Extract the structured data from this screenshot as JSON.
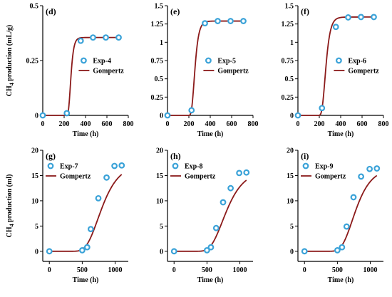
{
  "colors": {
    "marker_edge": "#3aa2d8",
    "curve": "#8b1a1a",
    "marker_fill": "#ffffff"
  },
  "chart_data": [
    {
      "type": "scatter",
      "panel_label": "(d)",
      "ylabel_main": "CH",
      "ylabel_sub": "4",
      "ylabel_rest": " production (mL/g)",
      "xlabel": "Time (h)",
      "xlim": [
        0,
        800
      ],
      "ylim": [
        0,
        0.5
      ],
      "xticks": [
        "0",
        "200",
        "400",
        "600",
        "800"
      ],
      "yticks": [
        {
          "v": 0,
          "t": "0"
        },
        {
          "v": 0.25,
          "t": "0.25"
        },
        {
          "v": 0.5,
          "t": "0.5"
        }
      ],
      "legend": [
        "Exp-4",
        "Gompertz"
      ],
      "legend_pos": "center-right",
      "series": [
        {
          "name": "Exp-4",
          "points": [
            [
              0,
              0
            ],
            [
              225,
              0.01
            ],
            [
              355,
              0.34
            ],
            [
              470,
              0.355
            ],
            [
              590,
              0.355
            ],
            [
              710,
              0.355
            ]
          ]
        },
        {
          "name": "Gompertz",
          "curve": {
            "P": 0.355,
            "Rm": 0.0075,
            "lambda": 240,
            "x0": 0,
            "x1": 710
          }
        }
      ]
    },
    {
      "type": "scatter",
      "panel_label": "(e)",
      "ylabel_main": "",
      "ylabel_sub": "",
      "ylabel_rest": "",
      "xlabel": "Time (h)",
      "xlim": [
        0,
        800
      ],
      "ylim": [
        0,
        1.5
      ],
      "xticks": [
        "0",
        "200",
        "400",
        "600",
        "800"
      ],
      "yticks": [
        {
          "v": 0,
          "t": "0"
        },
        {
          "v": 0.25,
          "t": "0.25"
        },
        {
          "v": 0.5,
          "t": "0.5"
        },
        {
          "v": 0.75,
          "t": "0.75"
        },
        {
          "v": 1,
          "t": "1"
        },
        {
          "v": 1.25,
          "t": "1.25"
        },
        {
          "v": 1.5,
          "t": "1.5"
        }
      ],
      "legend": [
        "Exp-5",
        "Gompertz"
      ],
      "legend_pos": "center-right",
      "series": [
        {
          "name": "Exp-5",
          "points": [
            [
              0,
              0
            ],
            [
              225,
              0.07
            ],
            [
              350,
              1.26
            ],
            [
              470,
              1.29
            ],
            [
              590,
              1.29
            ],
            [
              710,
              1.29
            ]
          ]
        },
        {
          "name": "Gompertz",
          "curve": {
            "P": 1.29,
            "Rm": 0.02,
            "lambda": 225,
            "x0": 0,
            "x1": 710
          }
        }
      ]
    },
    {
      "type": "scatter",
      "panel_label": "(f)",
      "ylabel_main": "",
      "ylabel_sub": "",
      "ylabel_rest": "",
      "xlabel": "Time (h)",
      "xlim": [
        0,
        800
      ],
      "ylim": [
        0,
        1.5
      ],
      "xticks": [
        "0",
        "200",
        "400",
        "600",
        "800"
      ],
      "yticks": [
        {
          "v": 0,
          "t": "0"
        },
        {
          "v": 0.25,
          "t": "0.25"
        },
        {
          "v": 0.5,
          "t": "0.5"
        },
        {
          "v": 0.75,
          "t": "0.75"
        },
        {
          "v": 1,
          "t": "1"
        },
        {
          "v": 1.25,
          "t": "1.25"
        },
        {
          "v": 1.5,
          "t": "1.5"
        }
      ],
      "legend": [
        "Exp-6",
        "Gompertz"
      ],
      "legend_pos": "center-right",
      "series": [
        {
          "name": "Exp-6",
          "points": [
            [
              0,
              0
            ],
            [
              225,
              0.1
            ],
            [
              355,
              1.21
            ],
            [
              470,
              1.34
            ],
            [
              590,
              1.345
            ],
            [
              710,
              1.345
            ]
          ]
        },
        {
          "name": "Gompertz",
          "curve": {
            "P": 1.345,
            "Rm": 0.018,
            "lambda": 225,
            "x0": 0,
            "x1": 710
          }
        }
      ]
    },
    {
      "type": "scatter",
      "panel_label": "(g)",
      "ylabel_main": "CH",
      "ylabel_sub": "4",
      "ylabel_rest": " production (ml)",
      "xlabel": "Time (h)",
      "xlim": [
        -100,
        1200
      ],
      "ylim": [
        -2,
        20
      ],
      "xticks": [
        "0",
        "500",
        "1000"
      ],
      "yticks": [
        {
          "v": 0,
          "t": "0"
        },
        {
          "v": 5,
          "t": "5"
        },
        {
          "v": 10,
          "t": "10"
        },
        {
          "v": 15,
          "t": "15"
        },
        {
          "v": 20,
          "t": "20"
        }
      ],
      "legend": [
        "Exp-7",
        "Gompertz"
      ],
      "legend_pos": "top-left",
      "series": [
        {
          "name": "Exp-7",
          "points": [
            [
              0,
              0
            ],
            [
              500,
              0.2
            ],
            [
              575,
              0.8
            ],
            [
              630,
              4.4
            ],
            [
              745,
              10.5
            ],
            [
              870,
              14.6
            ],
            [
              990,
              16.9
            ],
            [
              1100,
              17.0
            ]
          ]
        },
        {
          "name": "Gompertz",
          "curve": {
            "P": 17.3,
            "Rm": 0.036,
            "lambda": 560,
            "x0": 0,
            "x1": 1100
          }
        }
      ]
    },
    {
      "type": "scatter",
      "panel_label": "(h)",
      "ylabel_main": "",
      "ylabel_sub": "",
      "ylabel_rest": "",
      "xlabel": "Time (h)",
      "xlim": [
        -100,
        1200
      ],
      "ylim": [
        -2,
        20
      ],
      "xticks": [
        "0",
        "500",
        "1000"
      ],
      "yticks": [
        {
          "v": 0,
          "t": "0"
        },
        {
          "v": 5,
          "t": "5"
        },
        {
          "v": 10,
          "t": "10"
        },
        {
          "v": 15,
          "t": "15"
        },
        {
          "v": 20,
          "t": "20"
        }
      ],
      "legend": [
        "Exp-8",
        "Gompertz"
      ],
      "legend_pos": "top-left",
      "series": [
        {
          "name": "Exp-8",
          "points": [
            [
              0,
              0
            ],
            [
              500,
              0.2
            ],
            [
              560,
              0.8
            ],
            [
              640,
              4.6
            ],
            [
              745,
              9.7
            ],
            [
              860,
              12.5
            ],
            [
              990,
              15.5
            ],
            [
              1100,
              15.6
            ]
          ]
        },
        {
          "name": "Gompertz",
          "curve": {
            "P": 16.0,
            "Rm": 0.033,
            "lambda": 555,
            "x0": 0,
            "x1": 1100
          }
        }
      ]
    },
    {
      "type": "scatter",
      "panel_label": "(i)",
      "ylabel_main": "",
      "ylabel_sub": "",
      "ylabel_rest": "",
      "xlabel": "Time (h)",
      "xlim": [
        -100,
        1200
      ],
      "ylim": [
        -2,
        20
      ],
      "xticks": [
        "0",
        "500",
        "1000"
      ],
      "yticks": [
        {
          "v": 0,
          "t": "0"
        },
        {
          "v": 5,
          "t": "5"
        },
        {
          "v": 10,
          "t": "10"
        },
        {
          "v": 15,
          "t": "15"
        },
        {
          "v": 20,
          "t": "20"
        }
      ],
      "legend": [
        "Exp-9",
        "Gompertz"
      ],
      "legend_pos": "top-left",
      "series": [
        {
          "name": "Exp-9",
          "points": [
            [
              0,
              0
            ],
            [
              500,
              0.2
            ],
            [
              570,
              0.8
            ],
            [
              640,
              4.9
            ],
            [
              745,
              10.7
            ],
            [
              860,
              14.8
            ],
            [
              990,
              16.3
            ],
            [
              1100,
              16.4
            ]
          ]
        },
        {
          "name": "Gompertz",
          "curve": {
            "P": 16.5,
            "Rm": 0.038,
            "lambda": 565,
            "x0": 0,
            "x1": 1100
          }
        }
      ]
    }
  ]
}
